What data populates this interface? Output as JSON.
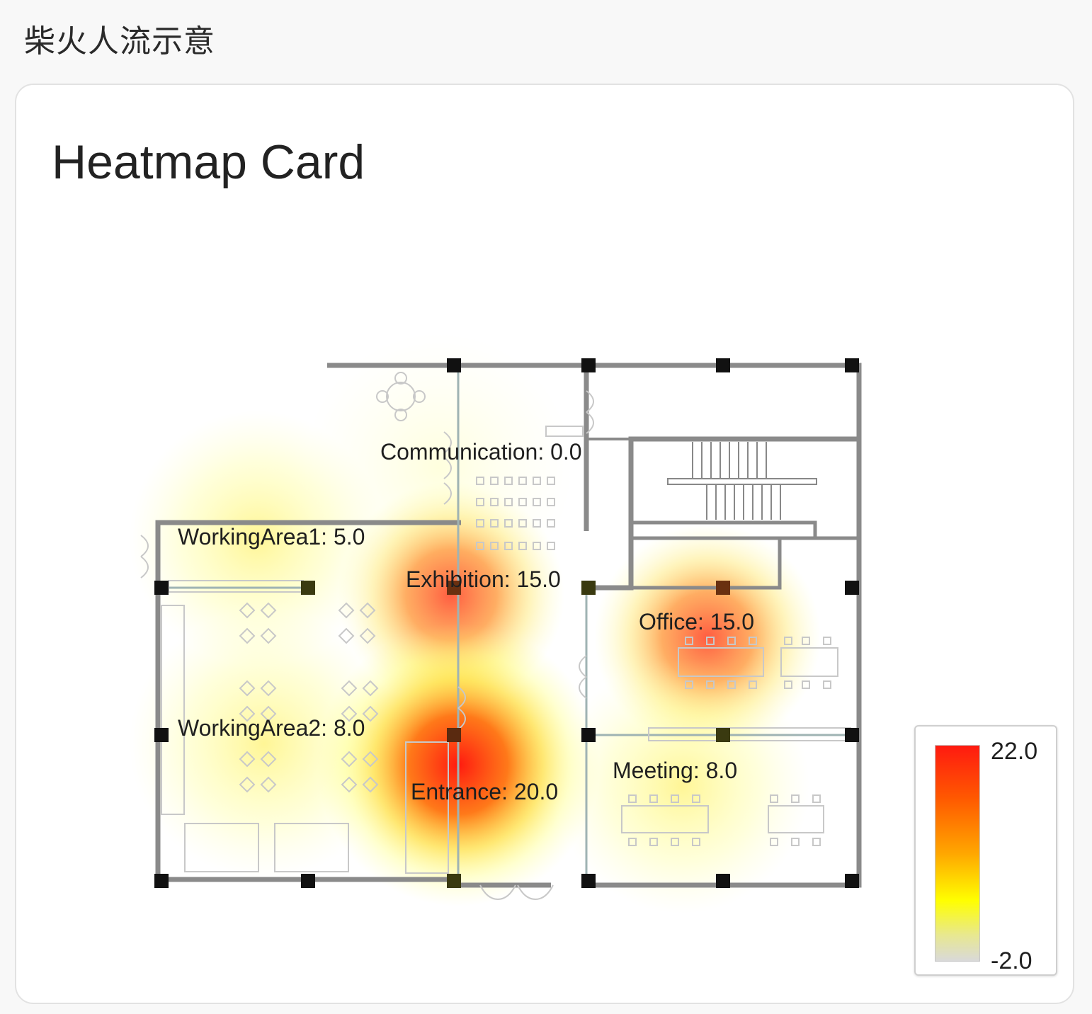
{
  "page": {
    "header": "柴火人流示意"
  },
  "card": {
    "title": "Heatmap Card"
  },
  "zones": [
    {
      "id": "communication",
      "label": "Communication: 0.0",
      "value": 0.0
    },
    {
      "id": "working-area-1",
      "label": "WorkingArea1: 5.0",
      "value": 5.0
    },
    {
      "id": "exhibition",
      "label": "Exhibition: 15.0",
      "value": 15.0
    },
    {
      "id": "office",
      "label": "Office: 15.0",
      "value": 15.0
    },
    {
      "id": "working-area-2",
      "label": "WorkingArea2: 8.0",
      "value": 8.0
    },
    {
      "id": "entrance",
      "label": "Entrance: 20.0",
      "value": 20.0
    },
    {
      "id": "meeting",
      "label": "Meeting: 8.0",
      "value": 8.0
    }
  ],
  "legend": {
    "max_label": "22.0",
    "min_label": "-2.0",
    "max": 22.0,
    "min": -2.0
  },
  "colors": {
    "low": "#d9d9d9",
    "mid": "#ffff00",
    "high": "#ff1a10",
    "wall": "#7a7a7a"
  }
}
